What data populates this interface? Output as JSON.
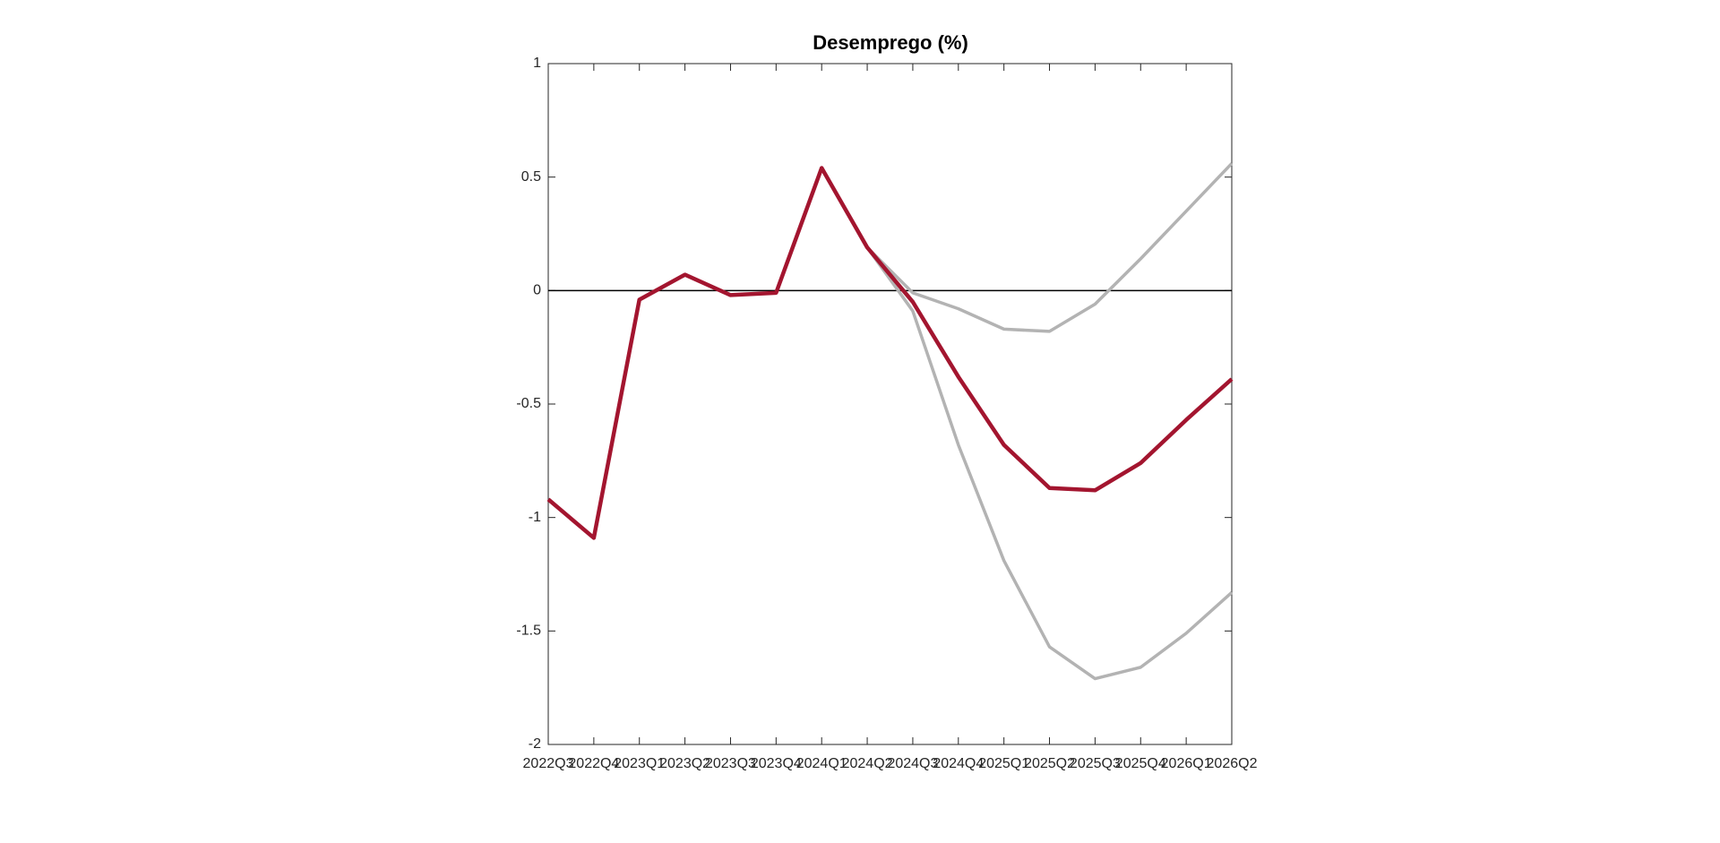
{
  "chart_data": {
    "type": "line",
    "title": "Desemprego (%)",
    "categories": [
      "2022Q3",
      "2022Q4",
      "2023Q1",
      "2023Q2",
      "2023Q3",
      "2023Q4",
      "2024Q1",
      "2024Q2",
      "2024Q3",
      "2024Q4",
      "2025Q1",
      "2025Q2",
      "2025Q3",
      "2025Q4",
      "2026Q1",
      "2026Q2"
    ],
    "series": [
      {
        "color": "#b3b3b3",
        "values": [
          null,
          null,
          null,
          null,
          null,
          null,
          null,
          0.19,
          -0.01,
          -0.08,
          -0.17,
          -0.18,
          -0.06,
          0.14,
          0.35,
          0.56
        ]
      },
      {
        "color": "#b3b3b3",
        "values": [
          null,
          null,
          null,
          null,
          null,
          null,
          null,
          0.19,
          -0.09,
          -0.68,
          -1.19,
          -1.57,
          -1.71,
          -1.66,
          -1.51,
          -1.33
        ]
      },
      {
        "color": "#a3152f",
        "values": [
          -0.92,
          -1.09,
          -0.04,
          0.07,
          -0.02,
          -0.01,
          0.54,
          0.19,
          -0.05,
          -0.38,
          -0.68,
          -0.87,
          -0.88,
          -0.76,
          -0.57,
          -0.39
        ]
      }
    ],
    "ylim": [
      -2,
      1
    ],
    "yticks": [
      -2,
      -1.5,
      -1,
      -0.5,
      0,
      0.5,
      1
    ],
    "grid": false
  }
}
